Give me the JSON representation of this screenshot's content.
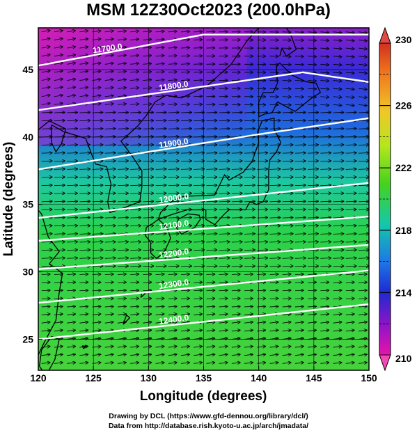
{
  "title": "MSM 12Z30Oct2023 (200.0hPa)",
  "x_axis": {
    "label": "Longitude (degrees)",
    "ticks": [
      "120",
      "125",
      "130",
      "135",
      "140",
      "145",
      "150"
    ]
  },
  "y_axis": {
    "label": "Latitude  (degrees)",
    "ticks": [
      "25",
      "30",
      "35",
      "40",
      "45"
    ]
  },
  "colorbar": {
    "labels": [
      "230",
      "226",
      "222",
      "218",
      "214",
      "210"
    ],
    "range": [
      210,
      230
    ],
    "colors_top_to_bottom": [
      "#d2301e",
      "#f07a1e",
      "#f0c828",
      "#b4e61e",
      "#46d21e",
      "#14c8aa",
      "#1e78e6",
      "#1e2ad2",
      "#8c14c8",
      "#e614aa"
    ]
  },
  "contours": [
    {
      "label": "11700.0",
      "lat_at_120": 45.3,
      "lat_at_135": 47.6
    },
    {
      "label": "11800.0",
      "lat_at_120": 42.0,
      "lat_at_135": 42.9
    },
    {
      "label": "11900.0",
      "lat_at_120": 37.6,
      "lat_at_135": 39.0
    },
    {
      "label": "12000.0",
      "lat_at_120": 34.0,
      "lat_at_135": 35.3
    },
    {
      "label": "12100.0",
      "lat_at_120": 32.3,
      "lat_at_135": 33.2
    },
    {
      "label": "12200.0",
      "lat_at_120": 30.2,
      "lat_at_135": 31.1
    },
    {
      "label": "12300.0",
      "lat_at_120": 27.7,
      "lat_at_135": 28.9
    },
    {
      "label": "12400.0",
      "lat_at_120": 25.0,
      "lat_at_135": 26.3
    }
  ],
  "credits": [
    "Drawing by DCL (https://www.gfd-dennou.org/library/dcl/)",
    "Data from http://database.rish.kyoto-u.ac.jp/arch/jmadata/"
  ]
}
